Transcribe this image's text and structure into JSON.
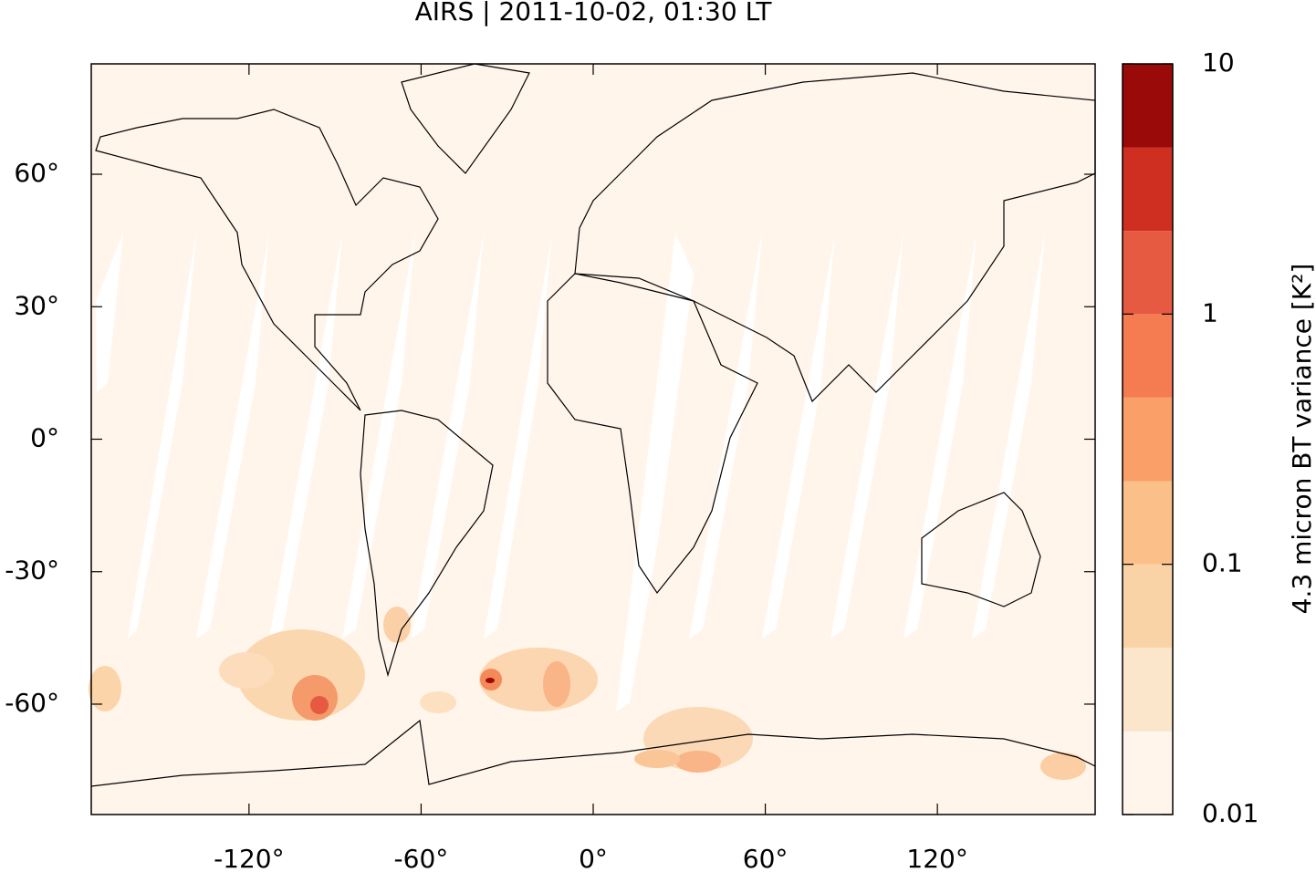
{
  "chart_data": {
    "type": "map",
    "title": "AIRS | 2011-10-02, 01:30 LT",
    "background": "#fff5eb",
    "xlim": [
      -175,
      175
    ],
    "ylim": [
      -85,
      85
    ],
    "xticks": [
      {
        "value": -120,
        "label": "-120°"
      },
      {
        "value": -60,
        "label": "-60°"
      },
      {
        "value": 0,
        "label": "0°"
      },
      {
        "value": 60,
        "label": "60°"
      },
      {
        "value": 120,
        "label": "120°"
      }
    ],
    "yticks": [
      {
        "value": -60,
        "label": "-60°"
      },
      {
        "value": -30,
        "label": "-30°"
      },
      {
        "value": 0,
        "label": "0°"
      },
      {
        "value": 30,
        "label": "30°"
      },
      {
        "value": 60,
        "label": "60°"
      }
    ],
    "colorbar": {
      "label": "4.3 micron BT variance [K²]",
      "scale": "log",
      "lim": [
        0.01,
        10
      ],
      "ticks": [
        0.01,
        0.1,
        1,
        10
      ],
      "levels": [
        0.01,
        0.0215,
        0.0464,
        0.1,
        0.215,
        0.464,
        1,
        2.15,
        4.64,
        10
      ],
      "colors": [
        "#fff5eb",
        "#fbe6cc",
        "#f9d3a6",
        "#fbc089",
        "#fb9f68",
        "#f47c50",
        "#e55a40",
        "#cf2f20",
        "#990a08"
      ]
    }
  }
}
